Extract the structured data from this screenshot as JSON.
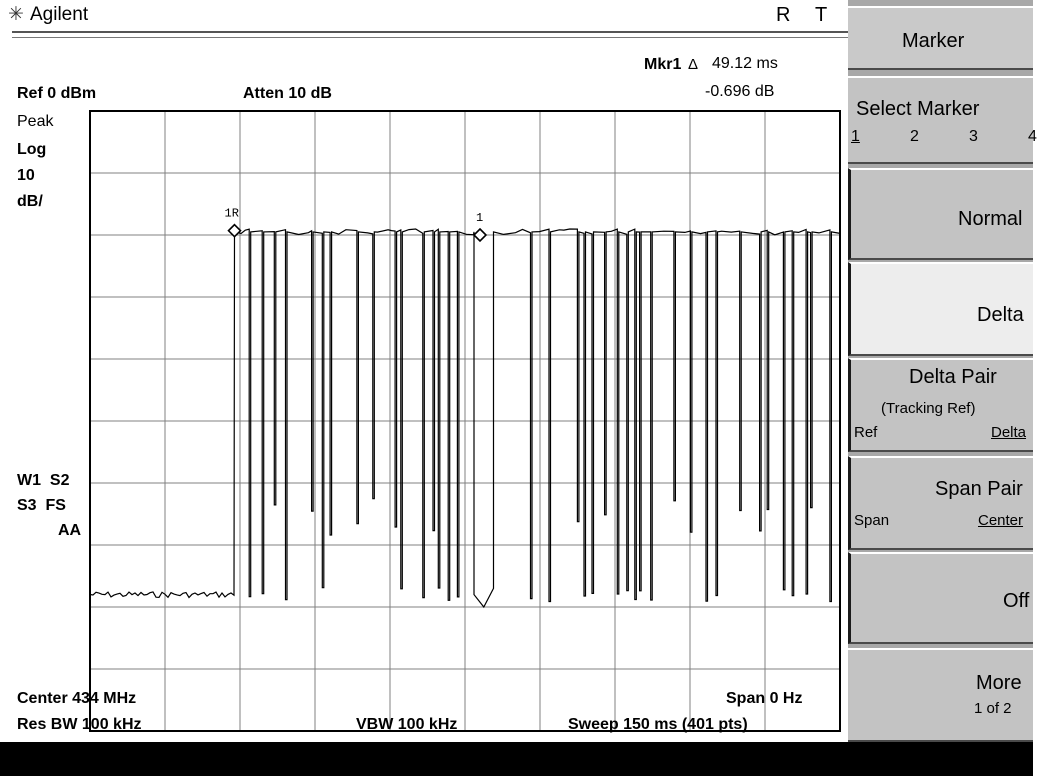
{
  "header": {
    "logo_glyph": "✳",
    "brand": "Agilent",
    "indicator_r": "R",
    "indicator_t": "T"
  },
  "marker_readout": {
    "label": "Mkr1",
    "delta_symbol": "Δ",
    "time": "49.12 ms",
    "amplitude": "-0.696 dB"
  },
  "settings": {
    "ref_level": "Ref 0 dBm",
    "attenuation": "Atten 10 dB",
    "detector": "Peak",
    "scale_type": "Log",
    "scale_value": "10",
    "scale_unit": "dB/",
    "trace_status_1": "W1  S2",
    "trace_status_2": "S3  FS",
    "trace_status_3": "AA",
    "center": "Center 434 MHz",
    "span": "Span 0 Hz",
    "res_bw": "Res BW 100 kHz",
    "vbw": "VBW 100 kHz",
    "sweep": "Sweep 150 ms (401 pts)"
  },
  "plot": {
    "marker_ref_label": "1R",
    "marker_label": "1"
  },
  "chart_data": {
    "type": "line",
    "title": "",
    "xlabel": "",
    "ylabel": "",
    "x_unit": "ms",
    "xlim": [
      0,
      150
    ],
    "y_unit": "dBm",
    "ylim": [
      -100,
      0
    ],
    "grid": true,
    "series": [
      {
        "name": "",
        "color": "#000000",
        "segments": [
          {
            "kind": "noise",
            "x": [
              0,
              28.9
            ],
            "y": -78
          },
          {
            "kind": "burst",
            "x": [
              28.9,
              76.8
            ],
            "y_high": -19.5,
            "y_low": -78
          },
          {
            "kind": "dip",
            "x": [
              76.8,
              80.7
            ],
            "y": -80
          },
          {
            "kind": "burst",
            "x": [
              80.7,
              150
            ],
            "y_high": -19.5,
            "y_low": -78
          }
        ]
      }
    ],
    "markers": [
      {
        "label": "1R",
        "x_ms": 28.9,
        "y_dbm": -19.3
      },
      {
        "label": "1",
        "x_ms": 78.0,
        "y_dbm": -20.0
      }
    ]
  },
  "softkeys": {
    "title": "Marker",
    "select_marker": "Select Marker",
    "select_opts": [
      "1",
      "2",
      "3",
      "4"
    ],
    "normal": "Normal",
    "delta": "Delta",
    "delta_pair": "Delta Pair",
    "delta_pair_sub": "(Tracking Ref)",
    "ref": "Ref",
    "delta_sub": "Delta",
    "span_pair": "Span Pair",
    "span": "Span",
    "center": "Center",
    "off": "Off",
    "more": "More",
    "more_sub": "1 of 2"
  },
  "colors": {
    "trace": "#000000",
    "grid": "#808080",
    "softkey_bg": "#c3c3c3",
    "softkey_active": "#ededed"
  }
}
